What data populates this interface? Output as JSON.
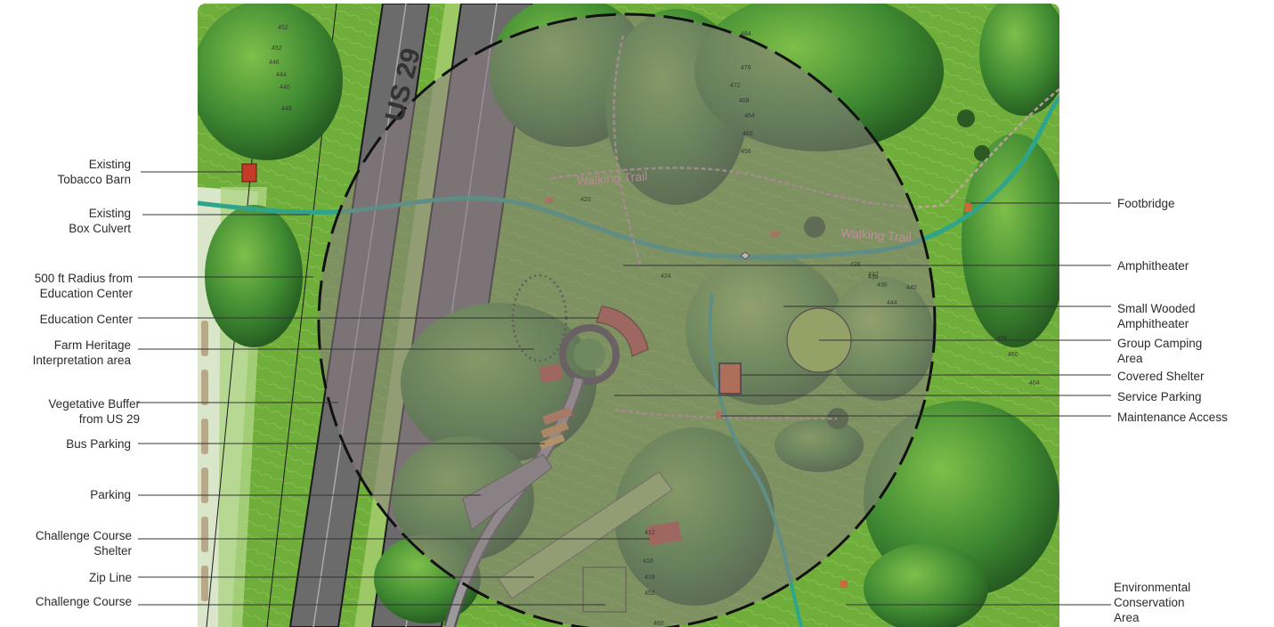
{
  "map": {
    "road_label": "US 29",
    "trail_label_1": "Walking Trail",
    "trail_label_2": "Walking Trail",
    "colors": {
      "forest_dark": "#2f6f2a",
      "forest_mid": "#4f9a3a",
      "meadow": "#8cc63f",
      "highway": "#7a7a7a",
      "stream": "#2ea58a",
      "overlay": "#8a7a80",
      "building_red": "#b5533a"
    }
  },
  "labels_left": [
    {
      "id": "existing-tobacco-barn",
      "lines": [
        "Existing",
        "Tobacco Barn"
      ]
    },
    {
      "id": "existing-box-culvert",
      "lines": [
        "Existing",
        "Box Culvert"
      ]
    },
    {
      "id": "radius-500ft",
      "lines": [
        "500 ft Radius from",
        "Education Center"
      ]
    },
    {
      "id": "education-center",
      "lines": [
        "Education Center"
      ]
    },
    {
      "id": "farm-heritage",
      "lines": [
        "Farm Heritage",
        "Interpretation area"
      ]
    },
    {
      "id": "vegetative-buffer",
      "lines": [
        "Vegetative Buffer",
        "from US 29"
      ]
    },
    {
      "id": "bus-parking",
      "lines": [
        "Bus Parking"
      ]
    },
    {
      "id": "parking",
      "lines": [
        "Parking"
      ]
    },
    {
      "id": "challenge-course-shelter",
      "lines": [
        "Challenge Course",
        "Shelter"
      ]
    },
    {
      "id": "zip-line",
      "lines": [
        "Zip Line"
      ]
    },
    {
      "id": "challenge-course",
      "lines": [
        "Challenge Course"
      ]
    }
  ],
  "labels_right": [
    {
      "id": "footbridge",
      "lines": [
        "Footbridge"
      ]
    },
    {
      "id": "amphitheater",
      "lines": [
        "Amphitheater"
      ]
    },
    {
      "id": "small-wooded-amphitheater",
      "lines": [
        "Small Wooded",
        "Amphitheater"
      ]
    },
    {
      "id": "group-camping-area",
      "lines": [
        "Group Camping",
        "Area"
      ]
    },
    {
      "id": "covered-shelter",
      "lines": [
        "Covered Shelter"
      ]
    },
    {
      "id": "service-parking",
      "lines": [
        "Service Parking"
      ]
    },
    {
      "id": "maintenance-access",
      "lines": [
        "Maintenance Access"
      ]
    },
    {
      "id": "environmental-conservation",
      "lines": [
        "Environmental",
        "Conservation",
        "Area"
      ]
    }
  ],
  "contours": [
    "452",
    "452",
    "446",
    "444",
    "440",
    "448",
    "436",
    "432",
    "436",
    "440",
    "444",
    "428",
    "424",
    "420",
    "456",
    "460",
    "464",
    "484",
    "476",
    "472",
    "468",
    "464",
    "460",
    "456",
    "412",
    "416",
    "418",
    "452",
    "460"
  ]
}
